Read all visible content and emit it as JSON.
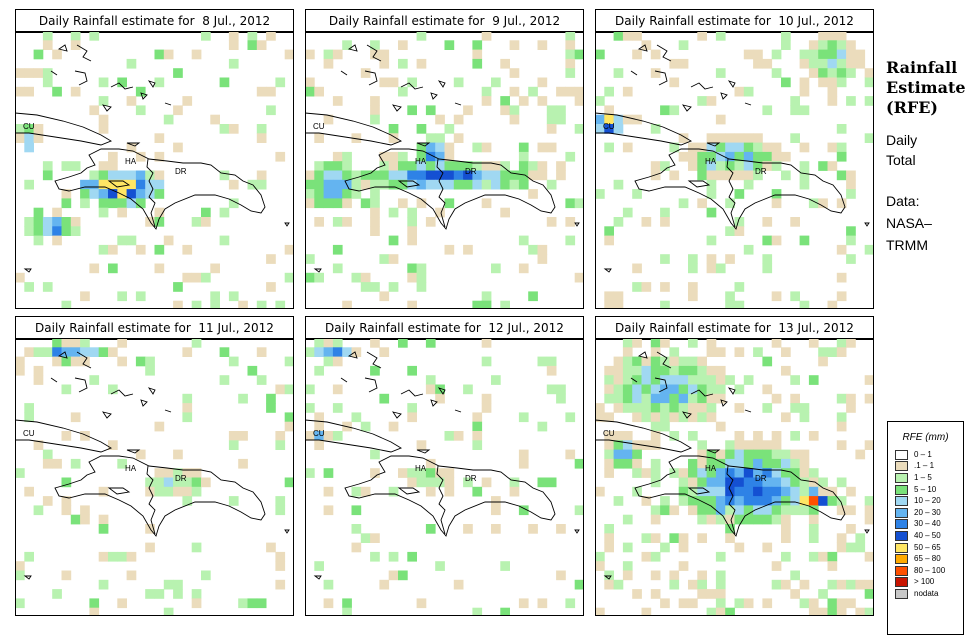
{
  "palette": [
    "#ffffff",
    "#ebdcbc",
    "#b8f2b0",
    "#7ae27a",
    "#a0d8f2",
    "#64b4f0",
    "#2e82e6",
    "#1450d2",
    "#ffe664",
    "#ffaa00",
    "#ff5000",
    "#c81400",
    "#a01e1e",
    "#c8c8c8"
  ],
  "panels": [
    {
      "title": "Daily Rainfall estimate for  8 Jul., 2012",
      "seed": 11,
      "wet": [
        [
          0.38,
          0.56,
          0.13,
          0.05,
          10
        ],
        [
          0.14,
          0.7,
          0.08,
          0.04,
          6
        ],
        [
          0.05,
          0.38,
          0.03,
          0.05,
          6
        ]
      ],
      "bg": 0.13
    },
    {
      "title": "Daily Rainfall estimate for  9 Jul., 2012",
      "seed": 23,
      "wet": [
        [
          0.5,
          0.52,
          0.28,
          0.04,
          7
        ],
        [
          0.1,
          0.55,
          0.08,
          0.08,
          6
        ],
        [
          0.46,
          0.45,
          0.05,
          0.06,
          6
        ]
      ],
      "bg": 0.14
    },
    {
      "title": "Daily Rainfall estimate for  10 Jul., 2012",
      "seed": 37,
      "wet": [
        [
          0.05,
          0.33,
          0.05,
          0.04,
          9
        ],
        [
          0.85,
          0.1,
          0.09,
          0.08,
          4
        ],
        [
          0.5,
          0.45,
          0.15,
          0.06,
          5
        ]
      ],
      "bg": 0.15
    },
    {
      "title": "Daily Rainfall estimate for  11 Jul., 2012",
      "seed": 41,
      "wet": [
        [
          0.2,
          0.05,
          0.12,
          0.03,
          6
        ],
        [
          0.58,
          0.52,
          0.1,
          0.04,
          4
        ]
      ],
      "bg": 0.11
    },
    {
      "title": "Daily Rainfall estimate for  12 Jul., 2012",
      "seed": 53,
      "wet": [
        [
          0.1,
          0.05,
          0.08,
          0.03,
          6
        ],
        [
          0.05,
          0.35,
          0.03,
          0.03,
          6
        ],
        [
          0.45,
          0.5,
          0.06,
          0.04,
          4
        ]
      ],
      "bg": 0.1
    },
    {
      "title": "Daily Rainfall estimate for  13 Jul., 2012",
      "seed": 67,
      "wet": [
        [
          0.55,
          0.53,
          0.2,
          0.12,
          7
        ],
        [
          0.78,
          0.58,
          0.06,
          0.03,
          10
        ],
        [
          0.25,
          0.18,
          0.18,
          0.1,
          5
        ],
        [
          0.1,
          0.42,
          0.06,
          0.05,
          6
        ]
      ],
      "bg": 0.22
    }
  ],
  "labels": {
    "cu": "CU",
    "ha": "HA",
    "dr": "DR"
  },
  "side": {
    "title_lines": [
      "Rainfall",
      "Estimate",
      "(RFE)"
    ],
    "daily_lines": [
      "Daily",
      "Total"
    ],
    "data_lines": [
      "Data:",
      "NASA–",
      "TRMM"
    ]
  },
  "legend": {
    "title": "RFE (mm)",
    "items": [
      {
        "label": "0 – 1",
        "color": "#ffffff"
      },
      {
        "label": ".1 – 1",
        "color": "#ebdcbc"
      },
      {
        "label": "1 – 5",
        "color": "#b8f2b0"
      },
      {
        "label": "5 – 10",
        "color": "#7ae27a"
      },
      {
        "label": "10 – 20",
        "color": "#a0d8f2"
      },
      {
        "label": "20 – 30",
        "color": "#64b4f0"
      },
      {
        "label": "30 – 40",
        "color": "#2e82e6"
      },
      {
        "label": "40 – 50",
        "color": "#1450d2"
      },
      {
        "label": "50 – 65",
        "color": "#ffe664"
      },
      {
        "label": "65 – 80",
        "color": "#ffaa00"
      },
      {
        "label": "80 – 100",
        "color": "#ff5000"
      },
      {
        "label": "> 100",
        "color": "#c81400"
      },
      {
        "label": "nodata",
        "color": "#c8c8c8"
      }
    ]
  }
}
